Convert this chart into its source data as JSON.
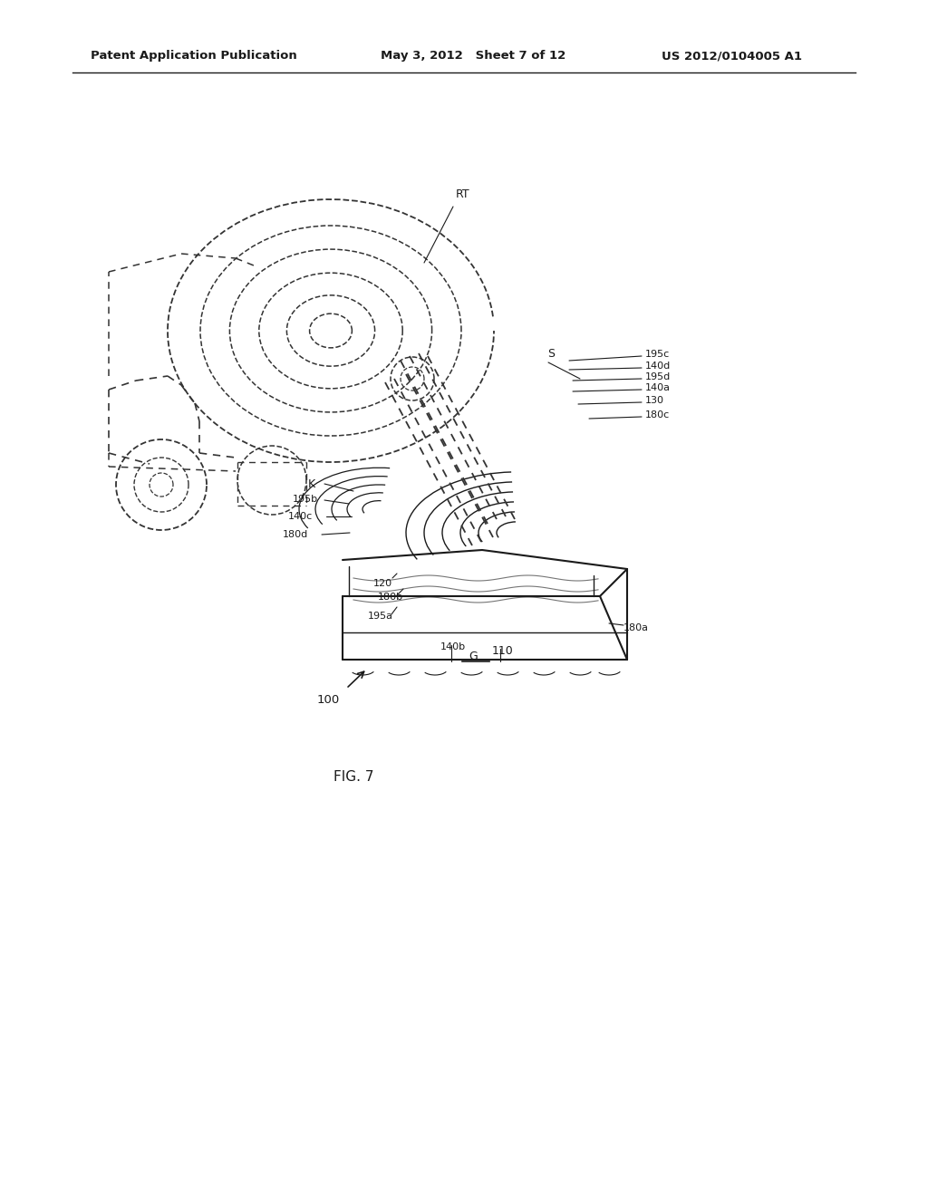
{
  "bg_color": "#ffffff",
  "line_color": "#1a1a1a",
  "dashed_color": "#333333",
  "header_left": "Patent Application Publication",
  "header_mid": "May 3, 2012   Sheet 7 of 12",
  "header_right": "US 2012/0104005 A1",
  "fig_label": "FIG. 7"
}
